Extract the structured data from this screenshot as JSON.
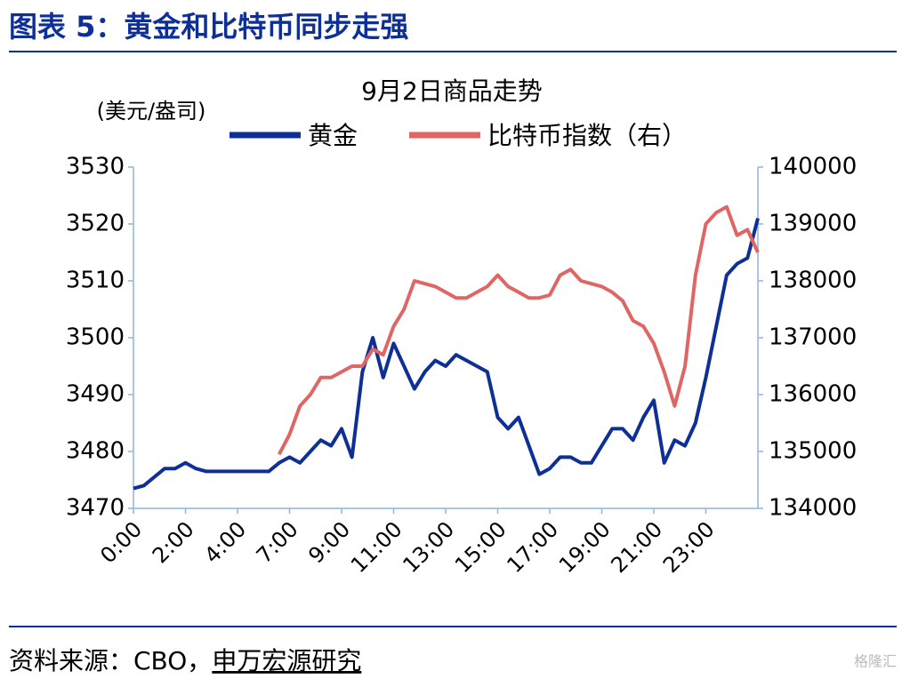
{
  "header": {
    "title": "图表 5：黄金和比特币同步走强"
  },
  "chart_data": {
    "type": "line",
    "title": "9月2日商品走势",
    "y_label": "(美元/盎司)",
    "x": [
      0,
      0.2,
      0.4,
      0.6,
      0.8,
      1,
      1.2,
      1.4,
      1.6,
      1.8,
      2,
      2.2,
      2.4,
      2.6,
      2.8,
      3,
      3.2,
      3.4,
      3.6,
      3.8,
      4,
      4.2,
      4.4,
      4.6,
      4.8,
      5,
      5.2,
      5.4,
      5.6,
      5.8,
      6,
      6.2,
      6.4,
      6.6,
      6.8,
      7,
      7.2,
      7.4,
      7.6,
      7.8,
      8,
      8.2,
      8.4,
      8.6,
      8.8,
      9,
      9.2,
      9.4,
      9.6,
      9.8,
      10,
      10.2,
      10.4,
      10.6,
      10.8,
      11,
      11.2,
      11.4,
      11.6,
      11.8,
      12
    ],
    "xlim": [
      0,
      12
    ],
    "xticks": [
      {
        "value": 0,
        "label": "0:00"
      },
      {
        "value": 1,
        "label": "2:00"
      },
      {
        "value": 2,
        "label": "4:00"
      },
      {
        "value": 3,
        "label": "7:00"
      },
      {
        "value": 4,
        "label": "9:00"
      },
      {
        "value": 5,
        "label": "11:00"
      },
      {
        "value": 6,
        "label": "13:00"
      },
      {
        "value": 7,
        "label": "15:00"
      },
      {
        "value": 8,
        "label": "17:00"
      },
      {
        "value": 9,
        "label": "19:00"
      },
      {
        "value": 10,
        "label": "21:00"
      },
      {
        "value": 11,
        "label": "23:00"
      }
    ],
    "ylim": [
      3470,
      3530
    ],
    "yticks": [
      3470,
      3480,
      3490,
      3500,
      3510,
      3520,
      3530
    ],
    "y2lim": [
      134000,
      140000
    ],
    "y2ticks": [
      134000,
      135000,
      136000,
      137000,
      138000,
      139000,
      140000
    ],
    "series": [
      {
        "name": "黄金",
        "color": "#0e2f96",
        "values": [
          3473.5,
          3474,
          3475.5,
          3477,
          3477,
          3478,
          3477,
          3476.5,
          3476.5,
          3476.5,
          3476.5,
          3476.5,
          3476.5,
          3476.5,
          3478,
          3479,
          3478,
          3480,
          3482,
          3481,
          3484,
          3479,
          3494,
          3500,
          3493,
          3499,
          3495,
          3491,
          3494,
          3496,
          3495,
          3497,
          3496,
          3495,
          3494,
          3486,
          3484,
          3486,
          3481,
          3476,
          3477,
          3479,
          3479,
          3478,
          3478,
          3481,
          3484,
          3484,
          3482,
          3486,
          3489,
          3478,
          3482,
          3481,
          3485,
          3493,
          3502,
          3511,
          3513,
          3514,
          3521
        ]
      },
      {
        "name": "比特币指数（右）",
        "color": "#e06666",
        "axis": "y2",
        "values": [
          null,
          null,
          null,
          null,
          null,
          null,
          null,
          null,
          null,
          null,
          null,
          null,
          null,
          null,
          134950,
          135300,
          135800,
          136000,
          136300,
          136300,
          136400,
          136500,
          136500,
          136800,
          136700,
          137200,
          137500,
          138000,
          137950,
          137900,
          137800,
          137700,
          137700,
          137800,
          137900,
          138100,
          137900,
          137800,
          137700,
          137700,
          137750,
          138100,
          138200,
          138000,
          137950,
          137900,
          137800,
          137650,
          137300,
          137200,
          136900,
          136400,
          135800,
          136500,
          138100,
          139000,
          139200,
          139300,
          138800,
          138900,
          138500
        ]
      }
    ]
  },
  "footer": {
    "source": "资料来源：CBO，",
    "source_org": "申万宏源研究",
    "watermark": "格隆汇"
  }
}
